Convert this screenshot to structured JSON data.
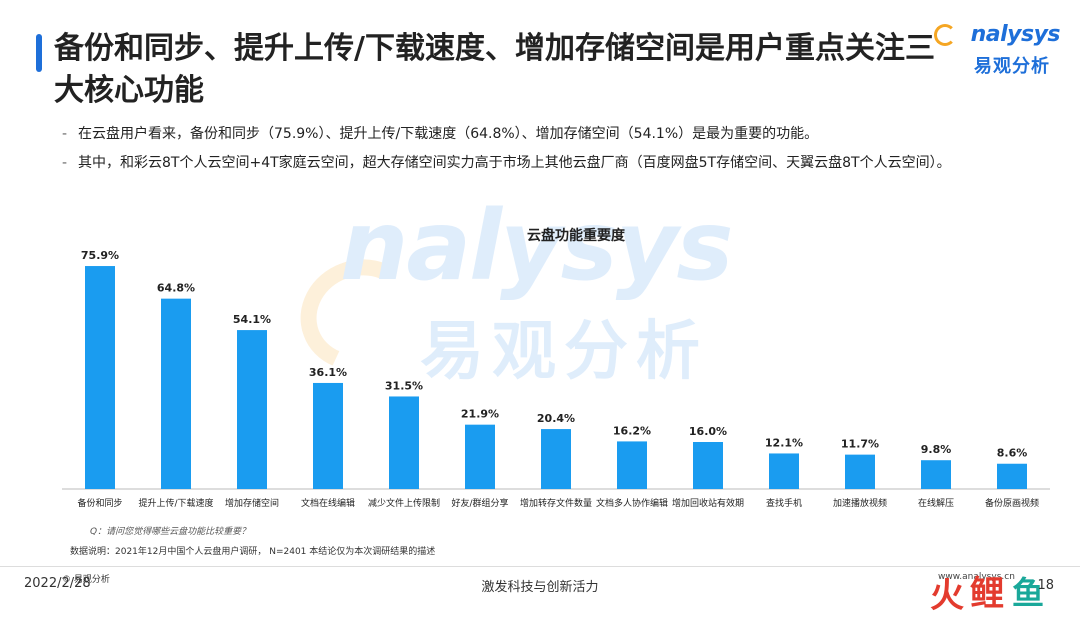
{
  "header": {
    "title": "备份和同步、提升上传/下载速度、增加存储空间是用户重点关注三大核心功能",
    "logo_en": "nalysys",
    "logo_cn": "易观分析"
  },
  "bullets": [
    "在云盘用户看来，备份和同步（75.9%）、提升上传/下载速度（64.8%）、增加存储空间（54.1%）是最为重要的功能。",
    "其中，和彩云8T个人云空间+4T家庭云空间，超大存储空间实力高于市场上其他云盘厂商（百度网盘5T存储空间、天翼云盘8T个人云空间）。"
  ],
  "chart_data": {
    "type": "bar",
    "title": "云盘功能重要度",
    "categories": [
      "备份和同步",
      "提升上传/下载速度",
      "增加存储空间",
      "文档在线编辑",
      "减少文件上传限制",
      "好友/群组分享",
      "增加转存文件数量",
      "文档多人协作编辑",
      "增加回收站有效期",
      "查找手机",
      "加速播放视频",
      "在线解压",
      "备份原画视频"
    ],
    "values": [
      75.9,
      64.8,
      54.1,
      36.1,
      31.5,
      21.9,
      20.4,
      16.2,
      16.0,
      12.1,
      11.7,
      9.8,
      8.6
    ],
    "value_labels": [
      "75.9%",
      "64.8%",
      "54.1%",
      "36.1%",
      "31.5%",
      "21.9%",
      "20.4%",
      "16.2%",
      "16.0%",
      "12.1%",
      "11.7%",
      "9.8%",
      "8.6%"
    ],
    "unit": "%",
    "ylim": [
      0,
      80
    ],
    "bar_color": "#1a9cf0",
    "grid": false,
    "legend": "none"
  },
  "watermark": {
    "en": "nalysys",
    "cn": "易观分析"
  },
  "footnotes": {
    "question": "Q：请问您觉得哪些云盘功能比较重要？",
    "note": "数据说明：2021年12月中国个人云盘用户调研， N=2401  本结论仅为本次调研结果的描述",
    "copyright": "© 易观分析"
  },
  "footer": {
    "date": "2022/2/28",
    "slogan": "激发科技与创新活力",
    "site": "www.analysys.cn",
    "page": "18",
    "stamp_chars": [
      "火",
      "鲤",
      "鱼"
    ]
  },
  "colors": {
    "accent": "#1e6fd9",
    "bar": "#1a9cf0",
    "logo_orange": "#f5a623"
  }
}
